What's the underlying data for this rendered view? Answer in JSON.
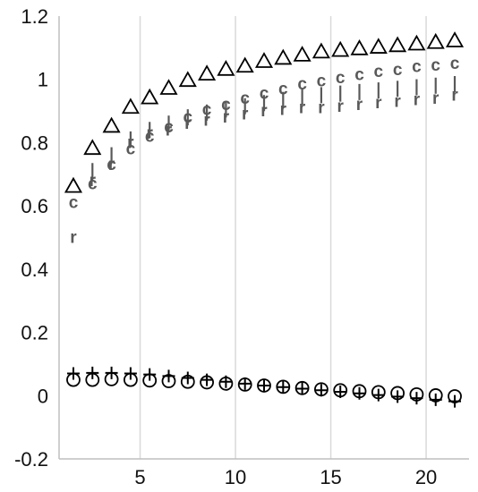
{
  "chart_data": {
    "type": "scatter",
    "title": "",
    "xlabel": "",
    "ylabel": "",
    "xlim": [
      0.75,
      22.25
    ],
    "ylim": [
      -0.2,
      1.2
    ],
    "x_ticks": [
      5,
      10,
      15,
      20
    ],
    "x_tick_labels": [
      "5",
      "10",
      "15",
      "20"
    ],
    "y_ticks": [
      -0.2,
      0,
      0.2,
      0.4,
      0.6,
      0.8,
      1,
      1.2
    ],
    "y_tick_labels": [
      "-0.2",
      "0",
      "0.2",
      "0.4",
      "0.6",
      "0.8",
      "1",
      "1.2"
    ],
    "grid": {
      "vertical": true,
      "horizontal": false
    },
    "legend": "none",
    "colors": {
      "black": "#000000",
      "gray": "#595959",
      "grid": "#d9d9d9",
      "axis": "#bfbfbf"
    },
    "series": [
      {
        "marker": "triangle",
        "color": "#000000",
        "x": [
          1.5,
          2.5,
          3.5,
          4.5,
          5.5,
          6.5,
          7.5,
          8.5,
          9.5,
          10.5,
          11.5,
          12.5,
          13.5,
          14.5,
          15.5,
          16.5,
          17.5,
          18.5,
          19.5,
          20.5,
          21.5
        ],
        "y": [
          0.66,
          0.78,
          0.85,
          0.91,
          0.94,
          0.97,
          0.995,
          1.015,
          1.03,
          1.04,
          1.055,
          1.065,
          1.075,
          1.085,
          1.09,
          1.095,
          1.1,
          1.105,
          1.11,
          1.115,
          1.12
        ]
      },
      {
        "marker": "c",
        "color": "#595959",
        "x": [
          1.5,
          2.5,
          3.5,
          4.5,
          5.5,
          6.5,
          7.5,
          8.5,
          9.5,
          10.5,
          11.5,
          12.5,
          13.5,
          14.5,
          15.5,
          16.5,
          17.5,
          18.5,
          19.5,
          20.5,
          21.5
        ],
        "y": [
          0.61,
          0.67,
          0.73,
          0.78,
          0.82,
          0.85,
          0.88,
          0.905,
          0.92,
          0.94,
          0.955,
          0.97,
          0.985,
          0.995,
          1.005,
          1.015,
          1.025,
          1.03,
          1.04,
          1.045,
          1.05
        ]
      },
      {
        "marker": "r",
        "color": "#595959",
        "x": [
          1.5,
          2.5,
          3.5,
          4.5,
          5.5,
          6.5,
          7.5,
          8.5,
          9.5,
          10.5,
          11.5,
          12.5,
          13.5,
          14.5,
          15.5,
          16.5,
          17.5,
          18.5,
          19.5,
          20.5,
          21.5
        ],
        "y": [
          0.5,
          0.68,
          0.73,
          0.8,
          0.83,
          0.84,
          0.86,
          0.87,
          0.88,
          0.89,
          0.9,
          0.905,
          0.91,
          0.91,
          0.915,
          0.92,
          0.925,
          0.93,
          0.935,
          0.94,
          0.95
        ]
      },
      {
        "marker": "vbar",
        "color": "#595959",
        "x": [
          2.5,
          3.5,
          4.5,
          5.5,
          6.5,
          7.5,
          8.5,
          9.5,
          10.5,
          11.5,
          12.5,
          13.5,
          14.5,
          15.5,
          16.5,
          17.5,
          18.5,
          19.5,
          20.5,
          21.5
        ],
        "y": [
          0.71,
          0.76,
          0.81,
          0.84,
          0.86,
          0.88,
          0.895,
          0.905,
          0.915,
          0.925,
          0.935,
          0.945,
          0.95,
          0.955,
          0.96,
          0.965,
          0.97,
          0.975,
          0.98,
          0.985
        ]
      },
      {
        "marker": "circle",
        "color": "#000000",
        "x": [
          1.5,
          2.5,
          3.5,
          4.5,
          5.5,
          6.5,
          7.5,
          8.5,
          9.5,
          10.5,
          11.5,
          12.5,
          13.5,
          14.5,
          15.5,
          16.5,
          17.5,
          18.5,
          19.5,
          20.5,
          21.5
        ],
        "y": [
          0.05,
          0.05,
          0.052,
          0.05,
          0.048,
          0.046,
          0.044,
          0.042,
          0.038,
          0.035,
          0.032,
          0.028,
          0.024,
          0.02,
          0.017,
          0.014,
          0.011,
          0.008,
          0.004,
          0.001,
          -0.002
        ]
      },
      {
        "marker": "plus",
        "color": "#000000",
        "x": [
          1.5,
          2.5,
          3.5,
          4.5,
          5.5,
          6.5,
          7.5,
          8.5,
          9.5,
          10.5,
          11.5,
          12.5,
          13.5,
          14.5,
          15.5,
          16.5,
          17.5,
          18.5,
          19.5,
          20.5,
          21.5
        ],
        "y": [
          0.07,
          0.072,
          0.072,
          0.07,
          0.067,
          0.062,
          0.056,
          0.05,
          0.044,
          0.038,
          0.032,
          0.027,
          0.022,
          0.017,
          0.012,
          0.007,
          0.002,
          -0.003,
          -0.008,
          -0.013,
          -0.018
        ]
      }
    ]
  }
}
